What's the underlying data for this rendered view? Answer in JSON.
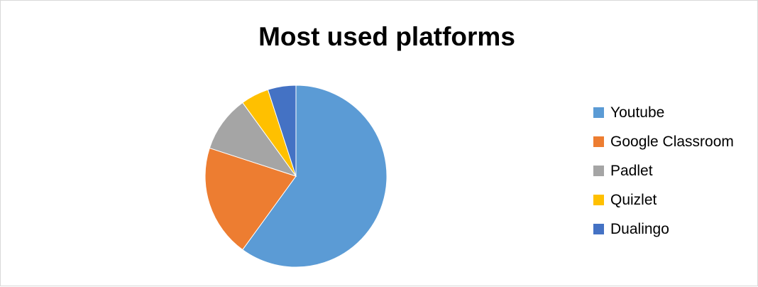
{
  "chart_data": {
    "type": "pie",
    "title": "Most used platforms",
    "categories": [
      "Youtube",
      "Google Classroom",
      "Padlet",
      "Quizlet",
      "Dualingo"
    ],
    "values": [
      60,
      20,
      10,
      5,
      5
    ],
    "colors": [
      "#5b9bd5",
      "#ed7d31",
      "#a5a5a5",
      "#ffc000",
      "#4472c4"
    ],
    "legend_position": "right",
    "start_angle_deg": 0,
    "direction": "clockwise"
  }
}
